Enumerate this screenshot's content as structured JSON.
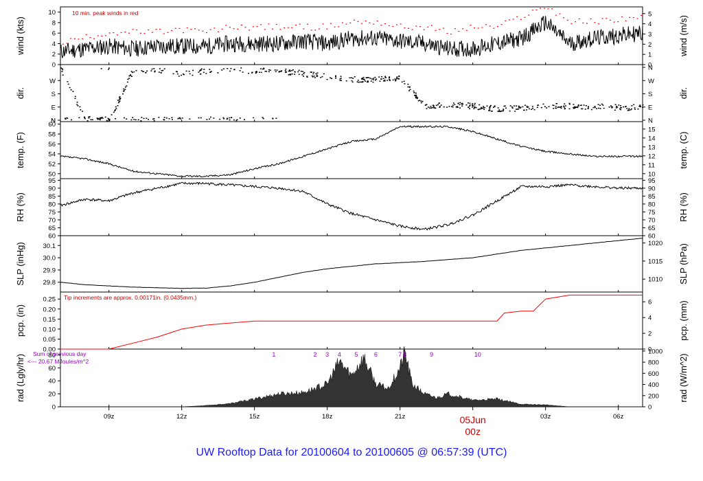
{
  "title": "UW Rooftop Data for 20100604  to  20100605 @ 06:57:39  (UTC)",
  "colors": {
    "trace": "#000000",
    "peak": "#ff0000",
    "precip": "#ff0000",
    "note": "#cc0000",
    "purple": "#9900cc",
    "title": "#1a1aff",
    "date": "#cc0000"
  },
  "time_axis": {
    "start_hour": 7.0,
    "end_hour": 31.0,
    "tick_labels": [
      "09z",
      "12z",
      "15z",
      "18z",
      "21z",
      "00z",
      "03z",
      "06z"
    ],
    "tick_hours": [
      9,
      12,
      15,
      18,
      21,
      24,
      27,
      30
    ],
    "date_label": "05Jun",
    "date_hour_label": "00z"
  },
  "panels": [
    {
      "key": "wind",
      "left_label": "wind (kts)",
      "right_label": "wind (m/s)",
      "left_ticks": [
        "0",
        "2",
        "4",
        "6",
        "8",
        "10"
      ],
      "right_ticks": [
        "0",
        "1",
        "2",
        "3",
        "4",
        "5"
      ],
      "note": "10 min. peak winds in red"
    },
    {
      "key": "dir",
      "left_label": "dir.",
      "right_label": "dir.",
      "left_ticks": [
        "N",
        "E",
        "S",
        "W",
        "N"
      ],
      "right_ticks": [
        "N",
        "E",
        "S",
        "W",
        "N"
      ]
    },
    {
      "key": "temp",
      "left_label": "temp. (F)",
      "right_label": "temp. (C)",
      "left_ticks": [
        "50",
        "52",
        "54",
        "56",
        "58",
        "60"
      ],
      "right_ticks": [
        "10",
        "11",
        "12",
        "13",
        "14",
        "15"
      ]
    },
    {
      "key": "rh",
      "left_label": "RH (%)",
      "right_label": "RH (%)",
      "left_ticks": [
        "60",
        "65",
        "70",
        "75",
        "80",
        "85",
        "90",
        "95"
      ],
      "right_ticks": [
        "60",
        "65",
        "70",
        "75",
        "80",
        "85",
        "90",
        "95"
      ]
    },
    {
      "key": "slp",
      "left_label": "SLP (inHg)",
      "right_label": "SLP (hPa)",
      "left_ticks": [
        "29.8",
        "29.9",
        "30.0",
        "30.1"
      ],
      "right_ticks": [
        "1010",
        "1015",
        "1020"
      ]
    },
    {
      "key": "pcp",
      "left_label": "pcp. (in)",
      "right_label": "pcp. (mm)",
      "left_ticks": [
        "0.00",
        "0.05",
        "0.10",
        "0.15",
        "0.20",
        "0.25"
      ],
      "right_ticks": [
        "0",
        "2",
        "4",
        "6"
      ],
      "note": "Tip increments are approx. 0.00171in. (0.0435mm.)"
    },
    {
      "key": "rad",
      "left_label": "rad (Lgly/hr)",
      "right_label": "rad (W/m^2)",
      "left_ticks": [
        "0",
        "20",
        "40",
        "60",
        "80"
      ],
      "right_ticks": [
        "0",
        "200",
        "400",
        "600",
        "800",
        "1000"
      ],
      "note_line1": "Sum of previous day",
      "note_line2": "<--- 20.67 MJoules/m^2",
      "marker_labels": [
        "1",
        "2",
        "3",
        "4",
        "5",
        "6",
        "7",
        "8",
        "9",
        "10"
      ]
    }
  ],
  "chart_data": {
    "type": "line",
    "x_unit": "hour UTC from 20100604 00z",
    "wind_kts": {
      "x": [
        7,
        8,
        9,
        10,
        11,
        12,
        13,
        14,
        15,
        16,
        17,
        18,
        19,
        20,
        21,
        22,
        23,
        24,
        25,
        26,
        27,
        28,
        29,
        30,
        31
      ],
      "values": [
        2.5,
        3,
        3.5,
        3,
        3.5,
        3.5,
        3.5,
        4,
        4,
        4,
        4.5,
        4,
        5,
        5,
        4.5,
        4,
        3,
        3,
        4,
        5,
        8,
        4,
        5,
        5.5,
        6
      ]
    },
    "peak_kts": {
      "x": [
        7,
        8,
        9,
        10,
        11,
        12,
        13,
        14,
        15,
        16,
        17,
        18,
        19,
        20,
        21,
        22,
        23,
        24,
        25,
        26,
        27,
        28,
        29,
        30,
        31
      ],
      "values": [
        4,
        5,
        6,
        6,
        6,
        6.5,
        6,
        7,
        7,
        7,
        7,
        7,
        8,
        8,
        7,
        7,
        6,
        7,
        7,
        9,
        11,
        8,
        8,
        8.5,
        9
      ]
    },
    "dir_deg": {
      "x": [
        7,
        8,
        9,
        10,
        11,
        12,
        13,
        14,
        15,
        16,
        17,
        18,
        19,
        20,
        21,
        22,
        23,
        24,
        25,
        26,
        27,
        28,
        29,
        30,
        31
      ],
      "values": [
        350,
        10,
        5,
        350,
        340,
        320,
        340,
        350,
        340,
        340,
        320,
        300,
        280,
        280,
        290,
        100,
        110,
        100,
        80,
        85,
        95,
        100,
        95,
        90,
        90
      ]
    },
    "temp_f": {
      "x": [
        7,
        8,
        9,
        10,
        11,
        12,
        13,
        14,
        15,
        16,
        17,
        18,
        19,
        20,
        21,
        22,
        23,
        24,
        25,
        26,
        27,
        28,
        29,
        30,
        31
      ],
      "values": [
        53.5,
        53,
        52,
        50.5,
        50,
        49.5,
        49.5,
        49.8,
        51,
        52,
        53.5,
        55,
        56.5,
        57,
        59.5,
        59.5,
        59.5,
        58.5,
        57,
        55.5,
        54.5,
        54,
        53.5,
        53.5,
        53.5
      ]
    },
    "rh_pct": {
      "x": [
        7,
        8,
        9,
        10,
        11,
        12,
        13,
        14,
        15,
        16,
        17,
        18,
        19,
        20,
        21,
        22,
        23,
        24,
        25,
        26,
        27,
        28,
        29,
        30,
        31
      ],
      "values": [
        79,
        83,
        82,
        87,
        90,
        93,
        93,
        92,
        91,
        90,
        88,
        80,
        74,
        70,
        66,
        64,
        67,
        73,
        82,
        91,
        91,
        92,
        91,
        90,
        90
      ]
    },
    "slp_inhg": {
      "x": [
        7,
        8,
        9,
        10,
        11,
        12,
        13,
        14,
        15,
        16,
        17,
        18,
        19,
        20,
        21,
        22,
        23,
        24,
        25,
        26,
        27,
        28,
        29,
        30,
        31
      ],
      "values": [
        29.8,
        29.78,
        29.77,
        29.76,
        29.755,
        29.75,
        29.752,
        29.77,
        29.8,
        29.84,
        29.88,
        29.91,
        29.93,
        29.95,
        29.96,
        29.97,
        29.985,
        30.0,
        30.03,
        30.06,
        30.08,
        30.1,
        30.12,
        30.14,
        30.16
      ]
    },
    "pcp_in": {
      "x": [
        7,
        8,
        9,
        10,
        11,
        12,
        13,
        14,
        15,
        16,
        17,
        18,
        19,
        20,
        21,
        22,
        23,
        24,
        25,
        25.3,
        26,
        26.5,
        27,
        28,
        29,
        30,
        31
      ],
      "values": [
        0,
        0,
        0,
        0.03,
        0.06,
        0.1,
        0.12,
        0.13,
        0.14,
        0.14,
        0.14,
        0.14,
        0.14,
        0.14,
        0.14,
        0.14,
        0.14,
        0.14,
        0.14,
        0.18,
        0.19,
        0.19,
        0.25,
        0.27,
        0.27,
        0.27,
        0.27
      ]
    },
    "rad_lgly": {
      "x": [
        7,
        8,
        9,
        10,
        11,
        12,
        13,
        14,
        15,
        16,
        17,
        18,
        18.5,
        19,
        19.5,
        20,
        20.5,
        21,
        21.2,
        21.5,
        22,
        22.5,
        23,
        24,
        25,
        26,
        27,
        28,
        29,
        30,
        31
      ],
      "values": [
        0,
        0,
        0,
        0,
        0,
        0,
        2,
        5,
        12,
        20,
        22,
        35,
        70,
        48,
        76,
        35,
        28,
        60,
        85,
        35,
        20,
        14,
        20,
        10,
        12,
        4,
        3,
        0,
        0,
        0,
        0
      ]
    }
  }
}
